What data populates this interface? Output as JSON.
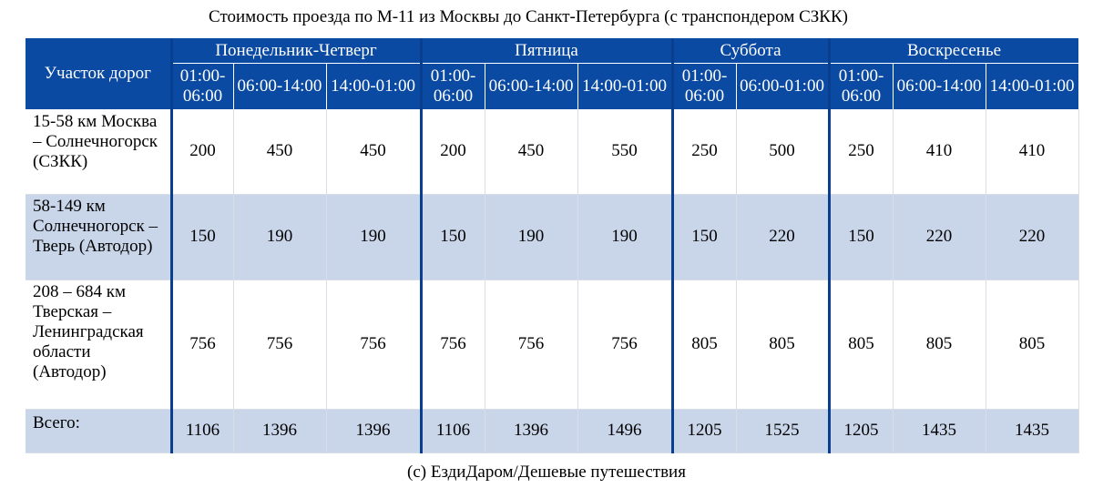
{
  "title": "Стоимость проезда по М-11 из Москвы до Санкт-Петербурга (с транспондером СЗКК)",
  "header": {
    "route_label": "Участок дорог",
    "groups": [
      {
        "label": "Понедельник-Четверг",
        "slots": [
          "01:00-06:00",
          "06:00-14:00",
          "14:00-01:00"
        ]
      },
      {
        "label": "Пятница",
        "slots": [
          "01:00-06:00",
          "06:00-14:00",
          "14:00-01:00"
        ]
      },
      {
        "label": "Суббота",
        "slots": [
          "01:00-06:00",
          "06:00-01:00"
        ]
      },
      {
        "label": "Воскресенье",
        "slots": [
          "01:00-06:00",
          "06:00-14:00",
          "14:00-01:00"
        ]
      }
    ]
  },
  "rows": [
    {
      "route_lines": [
        "15-58 км Москва",
        "– Солнечногорск",
        "(СЗКК)"
      ],
      "values": [
        "200",
        "450",
        "450",
        "200",
        "450",
        "550",
        "250",
        "500",
        "250",
        "410",
        "410"
      ]
    },
    {
      "route_lines": [
        "58-149 км",
        "Солнечногорск –",
        "Тверь (Автодор)"
      ],
      "values": [
        "150",
        "190",
        "190",
        "150",
        "190",
        "190",
        "150",
        "220",
        "150",
        "220",
        "220"
      ]
    },
    {
      "route_lines": [
        "208 – 684 км",
        "Тверская –",
        "Ленинградская",
        "области",
        "(Автодор)"
      ],
      "values": [
        "756",
        "756",
        "756",
        "756",
        "756",
        "756",
        "805",
        "805",
        "805",
        "805",
        "805"
      ]
    },
    {
      "route_lines": [
        "Всего:"
      ],
      "values": [
        "1106",
        "1396",
        "1396",
        "1106",
        "1396",
        "1496",
        "1205",
        "1525",
        "1205",
        "1435",
        "1435"
      ]
    }
  ],
  "footer": "(с) ЕздиДаром/Дешевые путешествия",
  "colors": {
    "header_bg": "#0b4aa2",
    "shaded_row": "#c9d5e9",
    "separator": "#0a3f8f"
  }
}
